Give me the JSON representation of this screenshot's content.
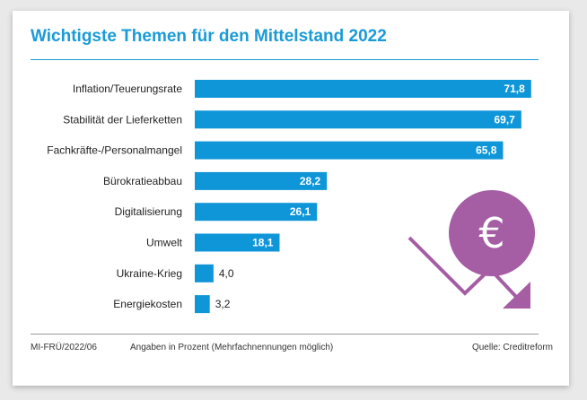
{
  "colors": {
    "bar": "#0f96d8",
    "accent": "#1a9bd7",
    "decoration": "#a55da4"
  },
  "chart_data": {
    "type": "bar",
    "orientation": "horizontal",
    "title": "Wichtigste Themen für den Mittelstand 2022",
    "xlabel": "",
    "ylabel": "",
    "xlim": [
      0,
      75
    ],
    "grid": false,
    "categories": [
      "Inflation/Teuerungsrate",
      "Stabilität der Lieferketten",
      "Fachkräfte-/Personalmangel",
      "Bürokratieabbau",
      "Digitalisierung",
      "Umwelt",
      "Ukraine-Krieg",
      "Energiekosten"
    ],
    "values": [
      71.8,
      69.7,
      65.8,
      28.2,
      26.1,
      18.1,
      4.0,
      3.2
    ],
    "value_labels": [
      "71,8",
      "69,7",
      "65,8",
      "28,2",
      "26,1",
      "18,1",
      "4,0",
      "3,2"
    ],
    "decoration": {
      "icon": "euro-falling-arrow-icon",
      "symbol": "€"
    }
  },
  "footer": {
    "code": "MI-FRÜ/2022/06",
    "note": "Angaben in Prozent (Mehrfachnennungen möglich)",
    "source": "Quelle: Creditreform"
  }
}
